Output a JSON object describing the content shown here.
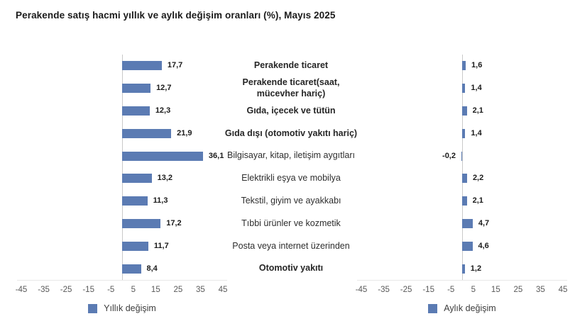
{
  "title": "Perakende satış hacmi yıllık ve aylık değişim oranları (%), Mayıs 2025",
  "colors": {
    "bar": "#5b7bb3",
    "zero_line": "#c9c9c9",
    "baseline": "#e8e8e8"
  },
  "chart_data": {
    "type": "bar",
    "orientation": "horizontal",
    "title": "Perakende satış hacmi yıllık ve aylık değişim oranları (%), Mayıs 2025",
    "categories": [
      "Perakende ticaret",
      "Perakende ticaret(saat, mücevher hariç)",
      "Gıda, içecek ve tütün",
      "Gıda dışı (otomotiv yakıtı hariç)",
      "Bilgisayar, kitap, iletişim aygıtları",
      "Elektrikli eşya ve mobilya",
      "Tekstil, giyim ve ayakkabı",
      "Tıbbi ürünler ve kozmetik",
      "Posta veya internet üzerinden",
      "Otomotiv yakıtı"
    ],
    "bold_categories": [
      true,
      true,
      true,
      true,
      false,
      false,
      false,
      false,
      false,
      true
    ],
    "series": [
      {
        "name": "Yıllık değişim",
        "values": [
          17.7,
          12.7,
          12.3,
          21.9,
          36.1,
          13.2,
          11.3,
          17.2,
          11.7,
          8.4
        ]
      },
      {
        "name": "Aylık değişim",
        "values": [
          1.6,
          1.4,
          2.1,
          1.4,
          -0.2,
          2.2,
          2.1,
          4.7,
          4.6,
          1.2
        ]
      }
    ],
    "x_ticks": [
      -45,
      -35,
      -25,
      -15,
      -5,
      5,
      15,
      25,
      35,
      45
    ],
    "xlim": [
      -45,
      45
    ],
    "grid": false,
    "legend_position": "bottom",
    "decimal_separator": ","
  }
}
